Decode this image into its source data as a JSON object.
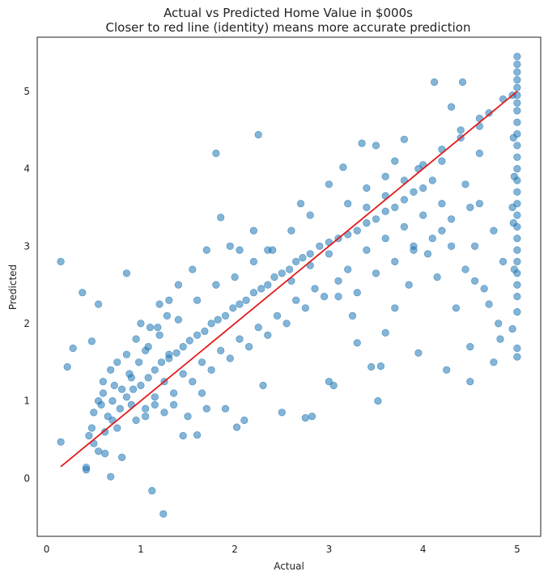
{
  "chart_data": {
    "type": "scatter",
    "title": "Actual vs Predicted Home Value in $000s",
    "subtitle": "Closer to red line (identity) means more accurate prediction",
    "xlabel": "Actual",
    "ylabel": "Predicted",
    "xlim": [
      -0.1,
      5.25
    ],
    "ylim": [
      -0.75,
      5.7
    ],
    "xticks": [
      0,
      1,
      2,
      3,
      4,
      5
    ],
    "yticks": [
      0,
      1,
      2,
      3,
      4,
      5
    ],
    "grid": false,
    "colors": {
      "points": "#1f77b4",
      "identity_line": "#e31a1c"
    },
    "identity_line": {
      "x": [
        0.15,
        5.0
      ],
      "y": [
        0.15,
        5.0
      ]
    },
    "series": [
      {
        "points": [
          [
            0.15,
            2.8
          ],
          [
            0.15,
            0.47
          ],
          [
            0.22,
            1.44
          ],
          [
            0.28,
            1.68
          ],
          [
            0.38,
            2.4
          ],
          [
            0.42,
            0.14
          ],
          [
            0.42,
            0.11
          ],
          [
            0.48,
            1.77
          ],
          [
            0.55,
            2.25
          ],
          [
            0.6,
            1.1
          ],
          [
            0.62,
            0.32
          ],
          [
            0.68,
            0.02
          ],
          [
            0.8,
            0.27
          ],
          [
            0.85,
            2.65
          ],
          [
            0.72,
            1.2
          ],
          [
            0.9,
            1.3
          ],
          [
            1.12,
            -0.16
          ],
          [
            1.24,
            -0.46
          ],
          [
            1.05,
            0.9
          ],
          [
            1.1,
            1.95
          ],
          [
            1.3,
            1.6
          ],
          [
            1.45,
            0.55
          ],
          [
            1.6,
            0.56
          ],
          [
            1.7,
            0.9
          ],
          [
            1.8,
            4.2
          ],
          [
            2.25,
            4.44
          ],
          [
            1.85,
            3.37
          ],
          [
            2.02,
            0.66
          ],
          [
            2.1,
            0.75
          ],
          [
            2.5,
            0.85
          ],
          [
            2.75,
            0.78
          ],
          [
            2.82,
            0.8
          ],
          [
            3.0,
            1.25
          ],
          [
            3.05,
            1.2
          ],
          [
            3.45,
            1.44
          ],
          [
            3.52,
            1.0
          ],
          [
            3.55,
            1.45
          ],
          [
            3.3,
            1.75
          ],
          [
            3.95,
            1.62
          ],
          [
            4.25,
            1.4
          ],
          [
            4.5,
            1.25
          ],
          [
            4.5,
            1.7
          ],
          [
            4.75,
            1.5
          ],
          [
            4.82,
            1.8
          ],
          [
            4.95,
            1.93
          ],
          [
            5.0,
            1.57
          ],
          [
            5.0,
            1.68
          ],
          [
            5.0,
            2.15
          ],
          [
            4.65,
            2.45
          ],
          [
            4.8,
            2.0
          ],
          [
            4.55,
            3.0
          ],
          [
            4.85,
            2.8
          ],
          [
            4.6,
            3.55
          ],
          [
            4.75,
            3.2
          ],
          [
            4.95,
            3.5
          ],
          [
            4.12,
            5.12
          ],
          [
            4.42,
            5.12
          ],
          [
            4.6,
            4.65
          ],
          [
            4.7,
            4.72
          ],
          [
            4.85,
            4.9
          ],
          [
            4.95,
            4.95
          ],
          [
            4.3,
            4.8
          ],
          [
            4.4,
            4.5
          ],
          [
            4.2,
            3.2
          ],
          [
            3.8,
            4.38
          ],
          [
            3.5,
            4.3
          ],
          [
            3.35,
            4.33
          ],
          [
            3.9,
            3.0
          ],
          [
            3.7,
            2.2
          ],
          [
            3.85,
            2.5
          ],
          [
            3.6,
            1.88
          ],
          [
            3.25,
            2.1
          ],
          [
            3.1,
            2.35
          ],
          [
            3.0,
            3.8
          ],
          [
            3.15,
            4.02
          ],
          [
            3.4,
            3.5
          ],
          [
            3.6,
            3.9
          ],
          [
            3.7,
            4.1
          ],
          [
            3.95,
            4.0
          ],
          [
            4.05,
            2.9
          ],
          [
            4.15,
            2.6
          ],
          [
            4.3,
            3.0
          ],
          [
            4.35,
            2.2
          ],
          [
            4.45,
            2.7
          ],
          [
            4.55,
            2.55
          ],
          [
            4.7,
            2.25
          ],
          [
            4.2,
            4.1
          ],
          [
            4.45,
            3.8
          ],
          [
            4.6,
            4.2
          ],
          [
            2.35,
            2.95
          ],
          [
            2.6,
            3.2
          ],
          [
            2.7,
            3.55
          ],
          [
            2.8,
            3.4
          ],
          [
            2.2,
            3.2
          ],
          [
            2.05,
            2.95
          ],
          [
            1.95,
            3.0
          ],
          [
            1.7,
            2.95
          ],
          [
            1.55,
            2.7
          ],
          [
            1.4,
            2.5
          ],
          [
            1.3,
            2.3
          ],
          [
            1.2,
            2.25
          ],
          [
            1.0,
            2.0
          ],
          [
            0.95,
            1.8
          ],
          [
            0.85,
            1.6
          ],
          [
            0.75,
            1.5
          ],
          [
            0.68,
            1.4
          ],
          [
            0.6,
            1.25
          ],
          [
            0.55,
            1.0
          ],
          [
            0.5,
            0.85
          ],
          [
            0.48,
            0.65
          ],
          [
            0.45,
            0.55
          ],
          [
            0.5,
            0.45
          ],
          [
            0.55,
            0.35
          ],
          [
            0.62,
            0.6
          ],
          [
            0.7,
            0.75
          ],
          [
            0.78,
            0.9
          ],
          [
            0.85,
            1.05
          ],
          [
            0.92,
            1.15
          ],
          [
            1.0,
            1.2
          ],
          [
            1.08,
            1.3
          ],
          [
            1.15,
            1.4
          ],
          [
            1.22,
            1.5
          ],
          [
            1.3,
            1.55
          ],
          [
            1.38,
            1.62
          ],
          [
            1.45,
            1.7
          ],
          [
            1.52,
            1.78
          ],
          [
            1.6,
            1.85
          ],
          [
            1.68,
            1.9
          ],
          [
            1.75,
            2.0
          ],
          [
            1.82,
            2.05
          ],
          [
            1.9,
            2.1
          ],
          [
            1.98,
            2.2
          ],
          [
            2.05,
            2.25
          ],
          [
            2.12,
            2.3
          ],
          [
            2.2,
            2.4
          ],
          [
            2.28,
            2.45
          ],
          [
            2.35,
            2.5
          ],
          [
            2.42,
            2.6
          ],
          [
            2.5,
            2.65
          ],
          [
            2.58,
            2.7
          ],
          [
            2.65,
            2.8
          ],
          [
            2.72,
            2.85
          ],
          [
            2.8,
            2.9
          ],
          [
            2.9,
            3.0
          ],
          [
            3.0,
            3.05
          ],
          [
            3.1,
            3.1
          ],
          [
            3.2,
            3.15
          ],
          [
            3.3,
            3.2
          ],
          [
            3.4,
            3.3
          ],
          [
            3.5,
            3.35
          ],
          [
            3.6,
            3.45
          ],
          [
            3.7,
            3.5
          ],
          [
            3.8,
            3.6
          ],
          [
            3.9,
            3.7
          ],
          [
            4.0,
            3.75
          ],
          [
            4.1,
            3.85
          ],
          [
            1.05,
            1.65
          ],
          [
            1.15,
            0.95
          ],
          [
            1.25,
            1.25
          ],
          [
            1.35,
            1.1
          ],
          [
            1.45,
            1.35
          ],
          [
            1.55,
            1.25
          ],
          [
            1.65,
            1.5
          ],
          [
            1.75,
            1.4
          ],
          [
            1.85,
            1.65
          ],
          [
            1.95,
            1.55
          ],
          [
            2.05,
            1.8
          ],
          [
            2.15,
            1.7
          ],
          [
            2.25,
            1.95
          ],
          [
            2.35,
            1.85
          ],
          [
            2.45,
            2.1
          ],
          [
            2.55,
            2.0
          ],
          [
            2.65,
            2.3
          ],
          [
            2.75,
            2.2
          ],
          [
            2.85,
            2.45
          ],
          [
            2.95,
            2.35
          ],
          [
            1.2,
            1.85
          ],
          [
            1.4,
            2.05
          ],
          [
            1.6,
            2.3
          ],
          [
            1.8,
            2.5
          ],
          [
            2.0,
            2.6
          ],
          [
            2.2,
            2.8
          ],
          [
            2.4,
            2.95
          ],
          [
            2.6,
            2.55
          ],
          [
            2.8,
            2.75
          ],
          [
            3.0,
            2.9
          ],
          [
            3.2,
            2.7
          ],
          [
            3.4,
            2.95
          ],
          [
            3.6,
            3.1
          ],
          [
            3.8,
            3.25
          ],
          [
            4.0,
            3.4
          ],
          [
            4.2,
            3.55
          ],
          [
            0.88,
            1.35
          ],
          [
            0.98,
            1.5
          ],
          [
            1.08,
            1.7
          ],
          [
            1.18,
            1.95
          ],
          [
            1.28,
            2.1
          ],
          [
            0.95,
            0.75
          ],
          [
            1.05,
            0.8
          ],
          [
            1.15,
            1.05
          ],
          [
            1.25,
            0.85
          ],
          [
            1.35,
            0.95
          ],
          [
            0.7,
            1.0
          ],
          [
            0.8,
            1.15
          ],
          [
            0.9,
            0.95
          ],
          [
            0.65,
            0.8
          ],
          [
            0.75,
            0.65
          ],
          [
            0.58,
            0.95
          ],
          [
            3.1,
            2.55
          ],
          [
            3.3,
            2.4
          ],
          [
            3.5,
            2.65
          ],
          [
            3.7,
            2.8
          ],
          [
            3.9,
            2.95
          ],
          [
            4.1,
            3.1
          ],
          [
            4.3,
            3.35
          ],
          [
            4.5,
            3.5
          ],
          [
            3.2,
            3.55
          ],
          [
            3.4,
            3.75
          ],
          [
            3.6,
            3.65
          ],
          [
            3.8,
            3.85
          ],
          [
            4.0,
            4.05
          ],
          [
            4.2,
            4.25
          ],
          [
            4.4,
            4.4
          ],
          [
            4.6,
            4.55
          ],
          [
            5.0,
            5.45
          ],
          [
            5.0,
            5.35
          ],
          [
            5.0,
            5.25
          ],
          [
            5.0,
            5.15
          ],
          [
            5.0,
            5.05
          ],
          [
            5.0,
            4.95
          ],
          [
            5.0,
            4.85
          ],
          [
            5.0,
            4.75
          ],
          [
            5.0,
            4.6
          ],
          [
            5.0,
            4.45
          ],
          [
            5.0,
            4.3
          ],
          [
            5.0,
            4.15
          ],
          [
            5.0,
            4.0
          ],
          [
            5.0,
            3.85
          ],
          [
            5.0,
            3.7
          ],
          [
            5.0,
            3.55
          ],
          [
            5.0,
            3.4
          ],
          [
            5.0,
            3.25
          ],
          [
            5.0,
            3.1
          ],
          [
            5.0,
            2.95
          ],
          [
            5.0,
            2.8
          ],
          [
            5.0,
            2.65
          ],
          [
            5.0,
            2.5
          ],
          [
            5.0,
            2.35
          ],
          [
            4.96,
            4.4
          ],
          [
            4.97,
            3.9
          ],
          [
            4.96,
            3.3
          ],
          [
            4.97,
            2.7
          ],
          [
            1.5,
            0.8
          ],
          [
            1.65,
            1.1
          ],
          [
            1.9,
            0.9
          ],
          [
            2.3,
            1.2
          ]
        ]
      }
    ]
  }
}
